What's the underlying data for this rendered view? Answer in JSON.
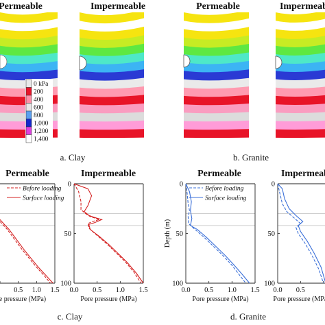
{
  "top_titles": [
    "Permeable",
    "Impermeable",
    "Permeable",
    "Impermeable"
  ],
  "bottom_titles": [
    "Permeable",
    "Impermeable",
    "Permeable",
    "Impermeable"
  ],
  "captions": [
    "a. Clay",
    "b. Granite",
    "c. Clay",
    "d. Granite"
  ],
  "contour_legend": {
    "levels": [
      "0 kPa",
      "200",
      "400",
      "600",
      "800",
      "1,000",
      "1,200",
      "1,400"
    ],
    "colors": [
      "#e8e8e8",
      "#e8142a",
      "#ff8fa8",
      "#e8e8e8",
      "#5aa0f0",
      "#1428cc",
      "#e040e0",
      "#ffffff"
    ]
  },
  "band_colors": [
    "#f6e410",
    "#ffffff",
    "#f6e410",
    "#c6ec24",
    "#5ee842",
    "#4ee8c8",
    "#3cb4f4",
    "#2a3ad4",
    "#eaeaea",
    "#ff9ab0",
    "#e81428",
    "#fa9cc0",
    "#dcdcdc",
    "#ff9cd8",
    "#e81428",
    "#ffffff"
  ],
  "colors": {
    "clay": "#d42020",
    "granite": "#3a6fd8",
    "ref_line": "#bdbdbd"
  },
  "chart_data": [
    {
      "type": "line",
      "title": "Permeable",
      "xlabel": "Pore pressure (MPa)",
      "ylabel": "",
      "xlim": [
        0,
        1.5
      ],
      "ylim": [
        100,
        0
      ],
      "xticks": [
        "0.5",
        "1.0",
        "1.5"
      ],
      "yticks": [],
      "series": [
        {
          "name": "Before loading",
          "style": "dashed",
          "points": [
            [
              0.0,
              38
            ],
            [
              0.1,
              42
            ],
            [
              0.2,
              46
            ],
            [
              0.4,
              56
            ],
            [
              0.6,
              66
            ],
            [
              0.8,
              75
            ],
            [
              1.0,
              84
            ],
            [
              1.2,
              92
            ],
            [
              1.38,
              100
            ]
          ]
        },
        {
          "name": "Surface loading",
          "style": "solid",
          "points": [
            [
              0.0,
              36
            ],
            [
              0.12,
              41
            ],
            [
              0.25,
              46
            ],
            [
              0.45,
              56
            ],
            [
              0.65,
              66
            ],
            [
              0.85,
              75
            ],
            [
              1.05,
              84
            ],
            [
              1.25,
              92
            ],
            [
              1.45,
              100
            ]
          ]
        }
      ]
    },
    {
      "type": "line",
      "title": "Impermeable",
      "xlabel": "Pore pressure (MPa)",
      "ylabel": "",
      "xlim": [
        0,
        1.5
      ],
      "ylim": [
        100,
        0
      ],
      "xticks": [
        "0.0",
        "0.5",
        "1.0",
        "1.5"
      ],
      "yticks": [
        "0",
        "50",
        "100"
      ],
      "series": [
        {
          "name": "Before loading",
          "style": "dashed",
          "points": [
            [
              0.0,
              0
            ],
            [
              0.1,
              8
            ],
            [
              0.15,
              18
            ],
            [
              0.15,
              26
            ],
            [
              0.25,
              30
            ],
            [
              0.35,
              33
            ],
            [
              0.55,
              36
            ],
            [
              0.4,
              38
            ],
            [
              0.3,
              40
            ],
            [
              0.33,
              45
            ],
            [
              0.5,
              52
            ],
            [
              0.7,
              60
            ],
            [
              0.9,
              69
            ],
            [
              1.1,
              78
            ],
            [
              1.3,
              89
            ],
            [
              1.45,
              100
            ]
          ]
        },
        {
          "name": "Surface loading",
          "style": "solid",
          "points": [
            [
              0.0,
              0
            ],
            [
              0.3,
              5
            ],
            [
              0.38,
              12
            ],
            [
              0.3,
              22
            ],
            [
              0.22,
              28
            ],
            [
              0.33,
              32
            ],
            [
              0.45,
              34
            ],
            [
              0.6,
              36
            ],
            [
              0.45,
              39
            ],
            [
              0.32,
              41
            ],
            [
              0.35,
              46
            ],
            [
              0.55,
              53
            ],
            [
              0.75,
              61
            ],
            [
              0.95,
              70
            ],
            [
              1.15,
              79
            ],
            [
              1.35,
              90
            ],
            [
              1.5,
              100
            ]
          ]
        }
      ]
    },
    {
      "type": "line",
      "title": "Permeable",
      "xlabel": "Pore pressure (MPa)",
      "ylabel": "Depth (m)",
      "xlim": [
        0,
        1.5
      ],
      "ylim": [
        100,
        0
      ],
      "xticks": [
        "0.0",
        "0.5",
        "1.0",
        "1.5"
      ],
      "yticks": [
        "0",
        "50",
        "100"
      ],
      "series": [
        {
          "name": "Before loading",
          "style": "dashed",
          "points": [
            [
              0.0,
              0
            ],
            [
              0.03,
              10
            ],
            [
              0.05,
              20
            ],
            [
              0.08,
              27
            ],
            [
              0.05,
              33
            ],
            [
              0.06,
              40
            ],
            [
              0.2,
              46
            ],
            [
              0.4,
              54
            ],
            [
              0.6,
              63
            ],
            [
              0.8,
              72
            ],
            [
              1.0,
              82
            ],
            [
              1.15,
              91
            ],
            [
              1.3,
              100
            ]
          ]
        },
        {
          "name": "Surface loading",
          "style": "solid",
          "points": [
            [
              0.0,
              0
            ],
            [
              0.08,
              8
            ],
            [
              0.12,
              18
            ],
            [
              0.1,
              27
            ],
            [
              0.13,
              35
            ],
            [
              0.1,
              42
            ],
            [
              0.25,
              46
            ],
            [
              0.45,
              54
            ],
            [
              0.65,
              63
            ],
            [
              0.85,
              72
            ],
            [
              1.05,
              82
            ],
            [
              1.22,
              91
            ],
            [
              1.38,
              100
            ]
          ]
        }
      ]
    },
    {
      "type": "line",
      "title": "Impermeable",
      "xlabel": "Pore pressure (MPa)",
      "ylabel": "",
      "xlim": [
        0,
        1.5
      ],
      "ylim": [
        100,
        0
      ],
      "xticks": [
        "0.0",
        "0.5"
      ],
      "yticks": [
        "0",
        "50",
        "100"
      ],
      "series": [
        {
          "name": "Before loading",
          "style": "dashed",
          "points": [
            [
              0.0,
              0
            ],
            [
              0.05,
              10
            ],
            [
              0.1,
              20
            ],
            [
              0.2,
              28
            ],
            [
              0.35,
              34
            ],
            [
              0.5,
              40
            ],
            [
              0.4,
              44
            ],
            [
              0.45,
              50
            ],
            [
              0.6,
              60
            ],
            [
              0.75,
              72
            ],
            [
              0.9,
              86
            ],
            [
              1.0,
              100
            ]
          ]
        },
        {
          "name": "Surface loading",
          "style": "solid",
          "points": [
            [
              0.0,
              0
            ],
            [
              0.1,
              5
            ],
            [
              0.15,
              15
            ],
            [
              0.25,
              25
            ],
            [
              0.4,
              32
            ],
            [
              0.55,
              38
            ],
            [
              0.45,
              42
            ],
            [
              0.5,
              48
            ],
            [
              0.65,
              58
            ],
            [
              0.8,
              70
            ],
            [
              0.95,
              84
            ],
            [
              1.05,
              100
            ]
          ]
        }
      ]
    }
  ],
  "legend_labels": [
    "Before loading",
    "Surface loading"
  ]
}
